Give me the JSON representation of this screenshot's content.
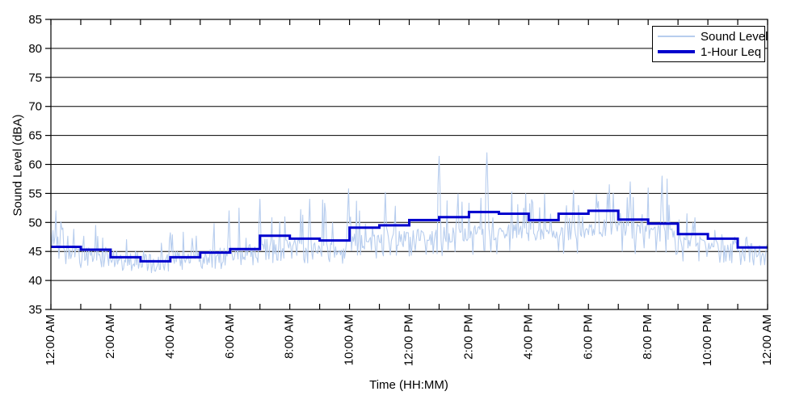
{
  "chart": {
    "x_axis": {
      "title": "Time (HH:MM)",
      "tick_labels": [
        "12:00 AM",
        "2:00 AM",
        "4:00 AM",
        "6:00 AM",
        "8:00 AM",
        "10:00 AM",
        "12:00 PM",
        "2:00 PM",
        "4:00 PM",
        "6:00 PM",
        "8:00 PM",
        "10:00 PM",
        "12:00 AM"
      ],
      "label_every_hours": 2,
      "minor_tick_hours": 1,
      "hours_span": 24
    },
    "y_axis": {
      "title": "Sound Level (dBA)",
      "tick_labels": [
        "35",
        "40",
        "45",
        "50",
        "55",
        "60",
        "65",
        "70",
        "75",
        "80",
        "85"
      ],
      "min": 35,
      "max": 85,
      "step": 5
    },
    "legend": {
      "items": [
        {
          "label": "Sound Level",
          "color": "#b7cdee",
          "thickness": 2
        },
        {
          "label": "1-Hour Leq",
          "color": "#0000cd",
          "thickness": 4
        }
      ]
    },
    "colors": {
      "sound_level_line": "#b7cdee",
      "leq_line": "#0000cd",
      "gridline": "#000000",
      "frame": "#000000",
      "text": "#000000",
      "background": "#ffffff"
    }
  },
  "chart_data": {
    "type": "line",
    "title": "",
    "xlabel": "Time (HH:MM)",
    "ylabel": "Sound Level (dBA)",
    "ylim": [
      35,
      85
    ],
    "xlim_hours": [
      0,
      24
    ],
    "grid": "horizontal-only",
    "legend_position": "top-right",
    "series": [
      {
        "name": "Sound Level",
        "style": "noisy-minute-trace",
        "color": "#b7cdee",
        "hourly_envelope": {
          "hours": [
            0,
            1,
            2,
            3,
            4,
            5,
            6,
            7,
            8,
            9,
            10,
            11,
            12,
            13,
            14,
            15,
            16,
            17,
            18,
            19,
            20,
            21,
            22,
            23
          ],
          "typical": [
            44.6,
            44.2,
            43.4,
            42.8,
            43.4,
            44.0,
            44.6,
            45.6,
            45.5,
            45.0,
            46.3,
            46.8,
            47.3,
            47.8,
            48.2,
            48.2,
            47.8,
            48.2,
            48.8,
            48.4,
            47.8,
            46.3,
            45.4,
            44.6
          ],
          "low": [
            42.8,
            42.2,
            41.6,
            41.3,
            41.8,
            42.0,
            42.5,
            43.0,
            43.0,
            42.5,
            43.5,
            43.8,
            44.0,
            44.0,
            44.3,
            44.3,
            44.0,
            44.3,
            44.8,
            44.5,
            44.0,
            43.3,
            43.0,
            42.6
          ],
          "high": [
            50.5,
            49.5,
            47.5,
            47.0,
            48.5,
            50.5,
            52.5,
            54.0,
            54.5,
            54.5,
            55.8,
            55.2,
            55.5,
            56.0,
            56.0,
            55.5,
            55.0,
            55.5,
            56.5,
            57.0,
            57.5,
            51.5,
            50.0,
            48.0
          ]
        },
        "notable_spikes": [
          {
            "hour": 0.15,
            "value": 52.0
          },
          {
            "hour": 1.5,
            "value": 49.5
          },
          {
            "hour": 5.95,
            "value": 52.0
          },
          {
            "hour": 7.0,
            "value": 54.0
          },
          {
            "hour": 8.66,
            "value": 54.0
          },
          {
            "hour": 9.95,
            "value": 55.8
          },
          {
            "hour": 11.2,
            "value": 55.2
          },
          {
            "hour": 13.0,
            "value": 61.4
          },
          {
            "hour": 14.6,
            "value": 62.0
          },
          {
            "hour": 17.5,
            "value": 55.5
          },
          {
            "hour": 18.7,
            "value": 56.5
          },
          {
            "hour": 19.4,
            "value": 57.0
          },
          {
            "hour": 20.45,
            "value": 58.0
          },
          {
            "hour": 21.3,
            "value": 51.5
          },
          {
            "hour": 23.3,
            "value": 47.5
          }
        ]
      },
      {
        "name": "1-Hour Leq",
        "style": "step",
        "color": "#0000cd",
        "hours": [
          0,
          1,
          2,
          3,
          4,
          5,
          6,
          7,
          8,
          9,
          10,
          11,
          12,
          13,
          14,
          15,
          16,
          17,
          18,
          19,
          20,
          21,
          22,
          23
        ],
        "values": [
          45.8,
          45.3,
          44.0,
          43.3,
          44.0,
          44.8,
          45.4,
          47.7,
          47.2,
          46.9,
          49.1,
          49.5,
          50.4,
          50.9,
          51.8,
          51.5,
          50.4,
          51.5,
          52.0,
          50.5,
          49.8,
          48.0,
          47.2,
          45.7
        ]
      }
    ]
  }
}
